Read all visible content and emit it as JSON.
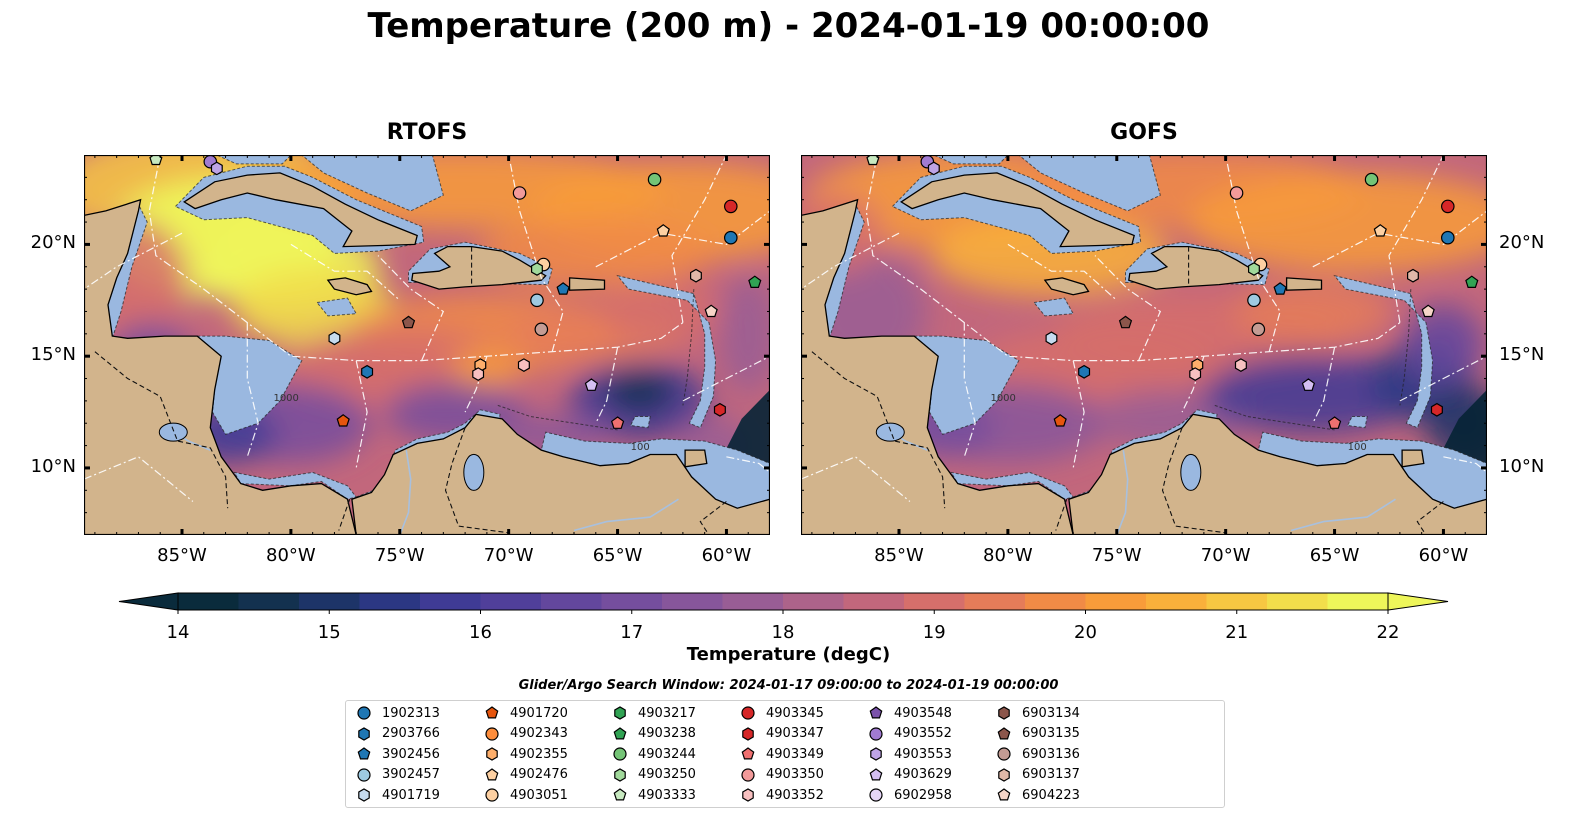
{
  "title": "Temperature (200 m) - 2024-01-19 00:00:00",
  "panels": [
    {
      "name": "RTOFS",
      "variant": "rtofs"
    },
    {
      "name": "GOFS",
      "variant": "gofs"
    }
  ],
  "map": {
    "lon_range": [
      -89.5,
      -58.0
    ],
    "lat_range": [
      7.0,
      24.0
    ],
    "lon_ticks": [
      {
        "value": -85,
        "label": "85°W"
      },
      {
        "value": -80,
        "label": "80°W"
      },
      {
        "value": -75,
        "label": "75°W"
      },
      {
        "value": -70,
        "label": "70°W"
      },
      {
        "value": -65,
        "label": "65°W"
      },
      {
        "value": -60,
        "label": "60°W"
      }
    ],
    "lat_ticks": [
      {
        "value": 10,
        "label": "10°N"
      },
      {
        "value": 15,
        "label": "15°N"
      },
      {
        "value": 20,
        "label": "20°N"
      }
    ],
    "colors": {
      "land": "#d2b48c",
      "shelf": "#9ab8e0",
      "deep_ocean": "#062435",
      "coast": "#000000",
      "eez": "#ffffff"
    },
    "contour_labels": [
      "1000",
      "100"
    ]
  },
  "colorbar": {
    "label": "Temperature (degC)",
    "min": 14,
    "max": 22,
    "tick_values": [
      14,
      15,
      16,
      17,
      18,
      19,
      20,
      21,
      22
    ],
    "tick_labels": [
      "14",
      "15",
      "16",
      "17",
      "18",
      "19",
      "20",
      "21",
      "22"
    ],
    "colors": [
      "#0a2b3c",
      "#13314f",
      "#1d3468",
      "#2b3783",
      "#3f3b95",
      "#503f9a",
      "#63479d",
      "#754e9e",
      "#87569b",
      "#995d95",
      "#ad638a",
      "#c2677c",
      "#d66f6b",
      "#e57c59",
      "#f18b46",
      "#f89c3a",
      "#f9b03b",
      "#f7c742",
      "#f2de4b",
      "#eef65a"
    ]
  },
  "legend": {
    "title": "Glider/Argo Search Window: 2024-01-17 09:00:00 to 2024-01-19 00:00:00",
    "items": [
      {
        "label": "1902313",
        "marker": "circle",
        "color": "#1f77b4"
      },
      {
        "label": "2903766",
        "marker": "hexagon",
        "color": "#1f77b4"
      },
      {
        "label": "3902456",
        "marker": "pentagon",
        "color": "#1f77b4"
      },
      {
        "label": "3902457",
        "marker": "circle",
        "color": "#9ecae1"
      },
      {
        "label": "4901719",
        "marker": "hexagon",
        "color": "#c6dbef"
      },
      {
        "label": "4901720",
        "marker": "pentagon",
        "color": "#e6550d"
      },
      {
        "label": "4902343",
        "marker": "circle",
        "color": "#fd8d3c"
      },
      {
        "label": "4902355",
        "marker": "hexagon",
        "color": "#fdae6b"
      },
      {
        "label": "4902476",
        "marker": "pentagon",
        "color": "#fdd0a2"
      },
      {
        "label": "4903051",
        "marker": "circle",
        "color": "#fdd0a2"
      },
      {
        "label": "4903217",
        "marker": "hexagon",
        "color": "#31a354"
      },
      {
        "label": "4903238",
        "marker": "pentagon",
        "color": "#31a354"
      },
      {
        "label": "4903244",
        "marker": "circle",
        "color": "#74c476"
      },
      {
        "label": "4903250",
        "marker": "hexagon",
        "color": "#a1d99b"
      },
      {
        "label": "4903333",
        "marker": "pentagon",
        "color": "#c7e9c0"
      },
      {
        "label": "4903345",
        "marker": "circle",
        "color": "#d62728"
      },
      {
        "label": "4903347",
        "marker": "hexagon",
        "color": "#d62728"
      },
      {
        "label": "4903349",
        "marker": "pentagon",
        "color": "#f07070"
      },
      {
        "label": "4903350",
        "marker": "circle",
        "color": "#f29a9a"
      },
      {
        "label": "4903352",
        "marker": "hexagon",
        "color": "#f8c0c0"
      },
      {
        "label": "4903548",
        "marker": "pentagon",
        "color": "#7b52ab"
      },
      {
        "label": "4903552",
        "marker": "circle",
        "color": "#a17bd1"
      },
      {
        "label": "4903553",
        "marker": "hexagon",
        "color": "#bea4e6"
      },
      {
        "label": "4903629",
        "marker": "pentagon",
        "color": "#d4bff2"
      },
      {
        "label": "6902958",
        "marker": "circle",
        "color": "#e6d6f7"
      },
      {
        "label": "6903134",
        "marker": "hexagon",
        "color": "#8c564b"
      },
      {
        "label": "6903135",
        "marker": "pentagon",
        "color": "#8c564b"
      },
      {
        "label": "6903136",
        "marker": "circle",
        "color": "#c49c94"
      },
      {
        "label": "6903137",
        "marker": "hexagon",
        "color": "#e0b8a8"
      },
      {
        "label": "6904223",
        "marker": "pentagon",
        "color": "#f6d5c8"
      }
    ]
  },
  "floats": [
    {
      "id": "4903333",
      "lon": -86.2,
      "lat": 23.8
    },
    {
      "id": "4903552",
      "lon": -83.7,
      "lat": 23.7
    },
    {
      "id": "4903553",
      "lon": -83.4,
      "lat": 23.4
    },
    {
      "id": "4903350",
      "lon": -69.5,
      "lat": 22.3
    },
    {
      "id": "4903244",
      "lon": -63.3,
      "lat": 22.9
    },
    {
      "id": "4903345",
      "lon": -59.8,
      "lat": 21.7
    },
    {
      "id": "4902476",
      "lon": -62.9,
      "lat": 20.6
    },
    {
      "id": "1902313",
      "lon": -59.8,
      "lat": 20.3
    },
    {
      "id": "4903238",
      "lon": -58.7,
      "lat": 18.3
    },
    {
      "id": "6903137",
      "lon": -61.4,
      "lat": 18.6
    },
    {
      "id": "4903051",
      "lon": -68.4,
      "lat": 19.1
    },
    {
      "id": "4903250",
      "lon": -68.7,
      "lat": 18.9
    },
    {
      "id": "3902457",
      "lon": -68.7,
      "lat": 17.5
    },
    {
      "id": "3902456",
      "lon": -67.5,
      "lat": 18.0
    },
    {
      "id": "6904223",
      "lon": -60.7,
      "lat": 17.0
    },
    {
      "id": "6903135",
      "lon": -74.6,
      "lat": 16.5
    },
    {
      "id": "6903136",
      "lon": -68.5,
      "lat": 16.2
    },
    {
      "id": "4901719",
      "lon": -78.0,
      "lat": 15.8
    },
    {
      "id": "2903766",
      "lon": -76.5,
      "lat": 14.3
    },
    {
      "id": "4902355",
      "lon": -71.3,
      "lat": 14.6
    },
    {
      "id": "4903352",
      "lon": -71.4,
      "lat": 14.2
    },
    {
      "id": "4903352",
      "lon": -69.3,
      "lat": 14.6
    },
    {
      "id": "4903629",
      "lon": -66.2,
      "lat": 13.7
    },
    {
      "id": "4901720",
      "lon": -77.6,
      "lat": 12.1
    },
    {
      "id": "4903349",
      "lon": -65.0,
      "lat": 12.0
    },
    {
      "id": "4903347",
      "lon": -60.3,
      "lat": 12.6
    }
  ]
}
